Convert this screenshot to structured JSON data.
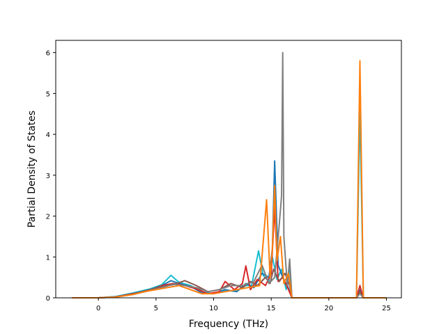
{
  "chart_data": {
    "type": "line",
    "title": "",
    "xlabel": "Frequency (THz)",
    "ylabel": "Partial Density of States",
    "xlim": [
      -3.7,
      26.3
    ],
    "ylim": [
      0,
      6.3
    ],
    "xticks": [
      0,
      5,
      10,
      15,
      20,
      25
    ],
    "yticks": [
      0,
      1,
      2,
      3,
      4,
      5,
      6
    ],
    "grid": false,
    "legend": "none",
    "series": [
      {
        "color": "#17becf",
        "x": [
          -2.3,
          0,
          1.5,
          3,
          4.5,
          5.5,
          6.3,
          7,
          8,
          9,
          10,
          11,
          12,
          12.8,
          13.3,
          13.9,
          14.3,
          14.8,
          15.1,
          15.5,
          15.9,
          16.3,
          16.6,
          16.8,
          20,
          22.4,
          22.7,
          23,
          25
        ],
        "y": [
          0,
          0,
          0.03,
          0.12,
          0.22,
          0.32,
          0.55,
          0.38,
          0.3,
          0.15,
          0.1,
          0.18,
          0.16,
          0.3,
          0.3,
          1.15,
          0.55,
          0.4,
          1.0,
          0.45,
          0.7,
          0.2,
          0.75,
          0,
          0,
          0,
          4.6,
          0,
          0
        ]
      },
      {
        "color": "#1f77b4",
        "x": [
          -2.3,
          0,
          1.5,
          3,
          4.5,
          5.5,
          6.3,
          7,
          8,
          9,
          10,
          11,
          12,
          12.8,
          13.5,
          14.2,
          14.8,
          15.1,
          15.3,
          15.6,
          16,
          16.4,
          16.8,
          20,
          22.4,
          22.7,
          23,
          25
        ],
        "y": [
          0,
          0,
          0.03,
          0.1,
          0.2,
          0.3,
          0.42,
          0.35,
          0.28,
          0.12,
          0.1,
          0.2,
          0.15,
          0.35,
          0.25,
          0.6,
          0.5,
          1.2,
          3.35,
          0.8,
          0.5,
          0.3,
          0,
          0,
          0,
          0.2,
          0,
          0
        ]
      },
      {
        "color": "#d62728",
        "x": [
          -2.3,
          0,
          1.5,
          3,
          4.5,
          5.5,
          6.5,
          7.5,
          8.5,
          9.5,
          10.5,
          11,
          11.8,
          12.5,
          12.8,
          13.2,
          13.8,
          14.5,
          15,
          15.3,
          15.6,
          16,
          16.5,
          16.8,
          20,
          22.4,
          22.7,
          23,
          25
        ],
        "y": [
          0,
          0,
          0.02,
          0.1,
          0.18,
          0.3,
          0.35,
          0.3,
          0.22,
          0.1,
          0.15,
          0.4,
          0.2,
          0.35,
          0.78,
          0.2,
          0.45,
          0.3,
          0.6,
          2.2,
          0.4,
          0.5,
          0.2,
          0,
          0,
          0,
          0.3,
          0,
          0
        ]
      },
      {
        "color": "#8c564b",
        "x": [
          -2.3,
          0,
          1.5,
          3,
          4.5,
          5.5,
          6.5,
          7.5,
          8.5,
          9.5,
          10.5,
          11.5,
          12.5,
          13.2,
          13.8,
          14.5,
          14.9,
          15.2,
          15.7,
          16.2,
          16.6,
          16.8,
          20,
          22.4,
          22.7,
          23,
          25
        ],
        "y": [
          0,
          0,
          0.02,
          0.09,
          0.2,
          0.28,
          0.32,
          0.42,
          0.3,
          0.15,
          0.2,
          0.35,
          0.25,
          0.4,
          0.3,
          0.5,
          0.35,
          0.7,
          0.4,
          0.6,
          0.3,
          0,
          0,
          0,
          0.15,
          0,
          0
        ]
      },
      {
        "color": "#7f7f7f",
        "x": [
          -2.3,
          0,
          1.5,
          3,
          4.5,
          5.5,
          6.5,
          7.5,
          8.5,
          9.5,
          10.5,
          11.5,
          12.5,
          13.5,
          14.2,
          14.8,
          15.3,
          15.7,
          15.9,
          16,
          16.1,
          16.4,
          16.6,
          16.8,
          20,
          22.4,
          22.7,
          23,
          25
        ],
        "y": [
          0,
          0,
          0.02,
          0.08,
          0.18,
          0.25,
          0.33,
          0.3,
          0.25,
          0.15,
          0.2,
          0.3,
          0.3,
          0.4,
          0.8,
          0.35,
          0.5,
          1.8,
          2.5,
          6.0,
          1.5,
          0.3,
          0.95,
          0,
          0,
          0,
          0.1,
          0,
          0
        ]
      },
      {
        "color": "#ff7f0e",
        "x": [
          -2.3,
          0,
          1.5,
          3,
          4,
          5,
          6,
          7,
          8,
          9,
          10,
          11,
          12,
          13,
          14,
          14.6,
          14.9,
          15.1,
          15.3,
          15.5,
          15.8,
          16.1,
          16.5,
          16.8,
          20,
          22.4,
          22.7,
          23,
          25
        ],
        "y": [
          0,
          0,
          0.02,
          0.08,
          0.15,
          0.2,
          0.25,
          0.3,
          0.2,
          0.1,
          0.1,
          0.15,
          0.2,
          0.25,
          0.3,
          2.4,
          0.5,
          1.2,
          2.75,
          0.9,
          1.5,
          0.35,
          0.6,
          0,
          0,
          0,
          5.8,
          0,
          0
        ]
      }
    ]
  }
}
